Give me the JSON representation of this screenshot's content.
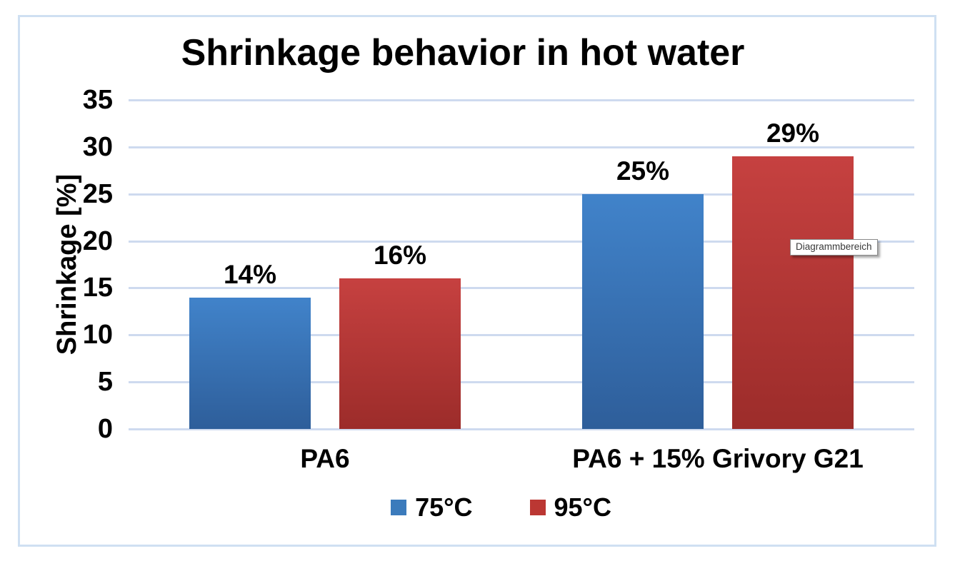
{
  "tooltip": {
    "text": "Diagrammbereich"
  },
  "colors": {
    "chart_border": "#CFE0F2",
    "gridline": "#CEDAEF",
    "text": "#000000"
  },
  "chart_data": {
    "type": "bar",
    "title": "Shrinkage behavior in hot water",
    "ylabel": "Shrinkage [%]",
    "xlabel": "",
    "categories": [
      "PA6",
      "PA6 + 15% Grivory G21"
    ],
    "series": [
      {
        "name": "75°C",
        "values": [
          14,
          25
        ],
        "data_labels": [
          "14%",
          "25%"
        ],
        "fill_top": "#4183CA",
        "fill_bottom": "#2E5E9A",
        "legend_color": "#3B7BBC"
      },
      {
        "name": "95°C",
        "values": [
          16,
          29
        ],
        "data_labels": [
          "16%",
          "29%"
        ],
        "fill_top": "#C64140",
        "fill_bottom": "#9C2C2A",
        "legend_color": "#BB3733"
      }
    ],
    "yticks": [
      0,
      5,
      10,
      15,
      20,
      25,
      30,
      35
    ],
    "ylim": [
      0,
      35
    ],
    "grid": true,
    "legend_position": "bottom"
  }
}
